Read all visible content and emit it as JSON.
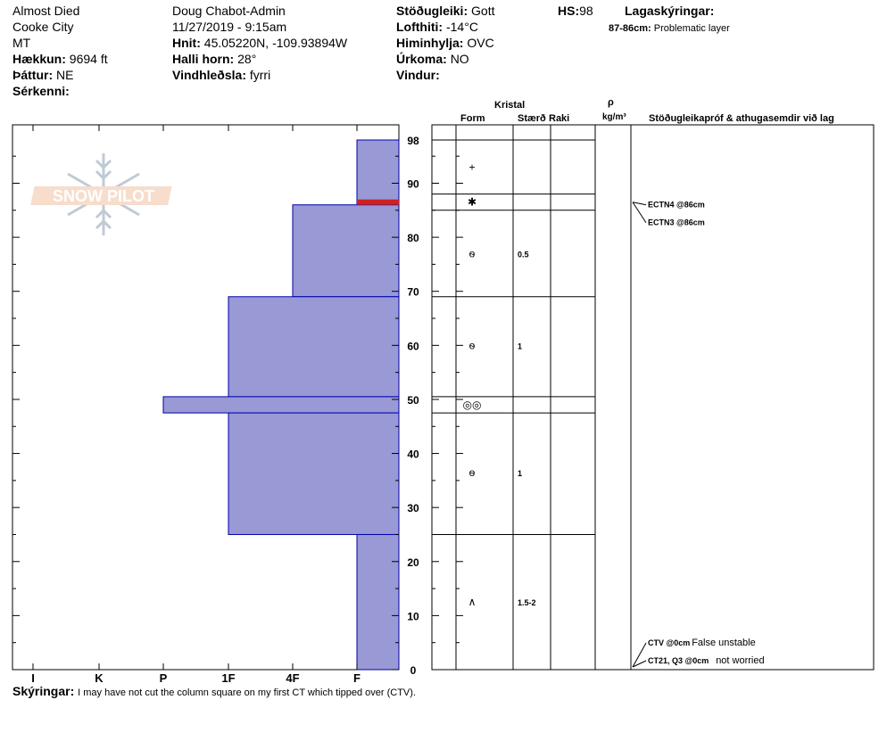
{
  "header": {
    "location": "Almost Died",
    "area": "Cooke City",
    "state": "MT",
    "elevation_label": "Hækkun:",
    "elevation": "9694 ft",
    "aspect_label": "Þáttur:",
    "aspect": "NE",
    "features_label": "Sérkenni:",
    "observer": "Doug Chabot-Admin",
    "datetime": "11/27/2019 - 9:15am",
    "coords_label": "Hnit:",
    "coords": "45.05220N, -109.93894W",
    "slope_label": "Halli horn:",
    "slope": "28°",
    "wind_loading_label": "Vindhleðsla:",
    "wind_loading": "fyrri",
    "stability_label": "Stöðugleiki:",
    "stability": "Gott",
    "air_temp_label": "Lofthiti:",
    "air_temp": "-14°C",
    "sky_label": "Himinhylja:",
    "sky": "OVC",
    "precip_label": "Úrkoma:",
    "precip": "NO",
    "wind_label": "Vindur:",
    "hs_label": "HS:",
    "hs": "98",
    "legend_label": "Lagaskýringar:",
    "legend_range": "87-86cm:",
    "legend_text": "Problematic layer"
  },
  "logo": {
    "text": "SNOW PILOT"
  },
  "columns": {
    "crystal": "Kristal",
    "form": "Form",
    "size": "Stærð",
    "moisture": "Raki",
    "density_symbol": "ρ",
    "density_unit": "kg/m³",
    "tests": "Stöðugleikapróf & athugasemdir við lag"
  },
  "footer": {
    "comments_label": "Skýringar:",
    "comments": "I may have not cut the column square on my first CT which tipped over (CTV)."
  },
  "chart_data": {
    "type": "bar",
    "orientation": "horizontal",
    "x_categories": [
      "I",
      "K",
      "P",
      "1F",
      "4F",
      "F"
    ],
    "ylim": [
      0,
      98
    ],
    "y_ticks": [
      0,
      10,
      20,
      30,
      40,
      50,
      60,
      70,
      80,
      90,
      98
    ],
    "hardness_profile": [
      {
        "top": 98,
        "bottom": 86,
        "hardness": "F"
      },
      {
        "top": 86,
        "bottom": 69,
        "hardness": "4F"
      },
      {
        "top": 69,
        "bottom": 50.5,
        "hardness": "1F"
      },
      {
        "top": 50.5,
        "bottom": 47.5,
        "hardness": "P"
      },
      {
        "top": 47.5,
        "bottom": 25,
        "hardness": "1F"
      },
      {
        "top": 25,
        "bottom": 0,
        "hardness": "F"
      }
    ],
    "problematic_layer": {
      "top": 87,
      "bottom": 86,
      "color": "#cc2222"
    },
    "layer_lines": [
      98,
      88,
      85,
      69,
      50.5,
      47.5,
      25,
      0
    ],
    "grains": [
      {
        "depth": 93,
        "form": "+",
        "size": ""
      },
      {
        "depth": 86.5,
        "form": "surface-hoar",
        "size": ""
      },
      {
        "depth": 77,
        "form": "faceted-rounded",
        "size": "0.5"
      },
      {
        "depth": 60,
        "form": "faceted-rounded",
        "size": "1"
      },
      {
        "depth": 49,
        "form": "melt-forms",
        "size": ""
      },
      {
        "depth": 36.5,
        "form": "faceted-rounded",
        "size": "1"
      },
      {
        "depth": 12.5,
        "form": "depth-hoar",
        "size": "1.5-2"
      }
    ],
    "tests": [
      {
        "depth": 86,
        "result": "ECTN4 @86cm",
        "comment": ""
      },
      {
        "depth": 86,
        "result": "ECTN3 @86cm",
        "comment": ""
      },
      {
        "depth": 0,
        "result": "CTV @0cm",
        "comment": "False unstable"
      },
      {
        "depth": 0,
        "result": "CT21, Q3 @0cm",
        "comment": "not worried"
      }
    ],
    "colors": {
      "fill": "#9999d6",
      "stroke": "#0000aa",
      "problem": "#cc2222",
      "line": "#000000"
    }
  }
}
